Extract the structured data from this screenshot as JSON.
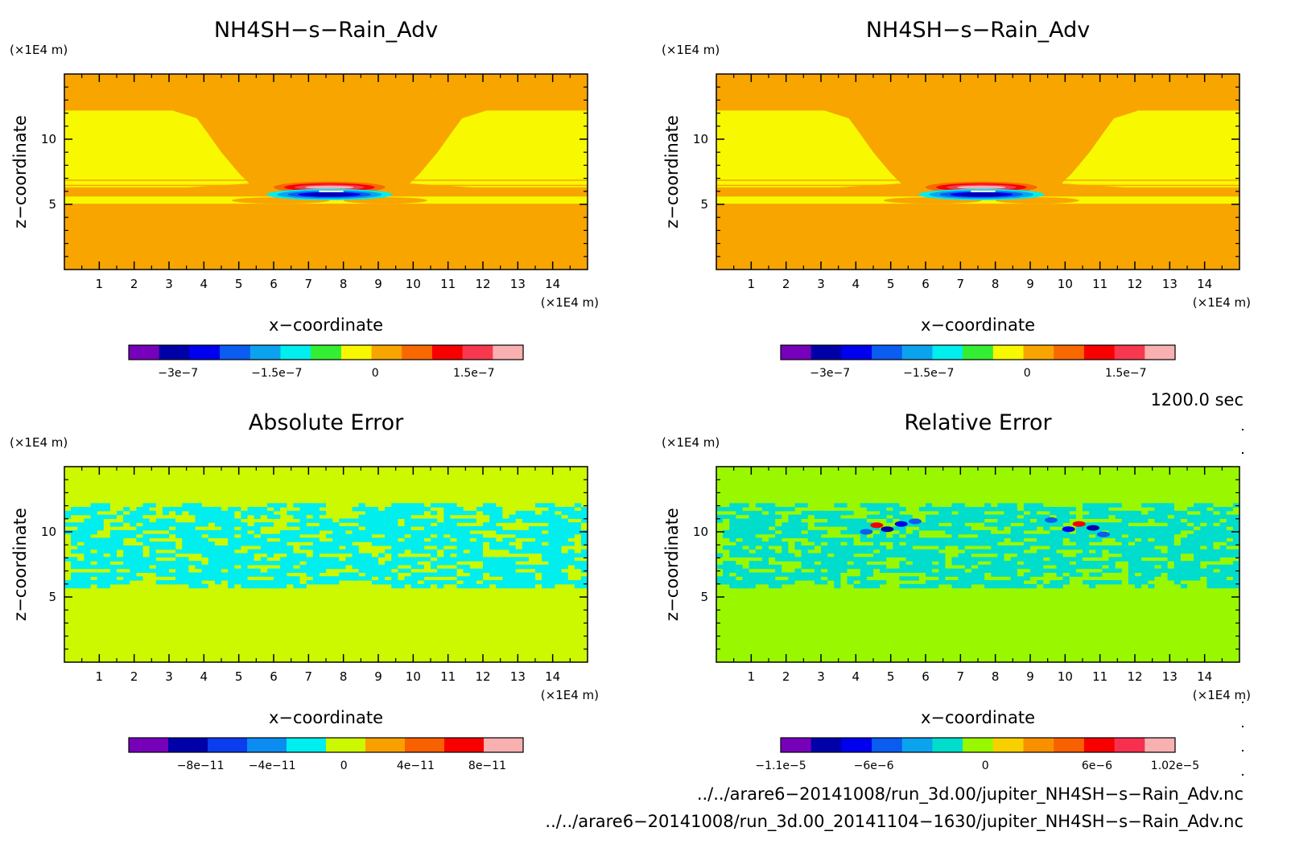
{
  "chart_data": [
    {
      "type": "heatmap",
      "title": "NH4SH−s−Rain_Adv",
      "xlabel": "x−coordinate",
      "ylabel": "z−coordinate",
      "x_unit": "(×1E4 m)",
      "y_unit": "(×1E4 m)",
      "xlim": [
        0,
        15
      ],
      "ylim": [
        0,
        15
      ],
      "x_ticks": [
        1,
        2,
        3,
        4,
        5,
        6,
        7,
        8,
        9,
        10,
        11,
        12,
        13,
        14
      ],
      "y_ticks": [
        5,
        10
      ],
      "field": "cloud_top",
      "colorbar": {
        "range": [
          -3.75e-07,
          2.25e-07
        ],
        "colors": [
          "#7700bb",
          "#0000a8",
          "#0000ee",
          "#0b5cf0",
          "#0ba3ee",
          "#00eeee",
          "#33ee33",
          "#f8f800",
          "#f8a500",
          "#f86800",
          "#f80000",
          "#f8384e",
          "#f8b0b0"
        ],
        "tick_values": [
          -3e-07,
          -1.5e-07,
          0,
          1.5e-07
        ],
        "tick_labels": [
          "−3e−7",
          "−1.5e−7",
          "0",
          "1.5e−7"
        ]
      }
    },
    {
      "type": "heatmap",
      "title": "NH4SH−s−Rain_Adv",
      "xlabel": "x−coordinate",
      "ylabel": "z−coordinate",
      "x_unit": "(×1E4 m)",
      "y_unit": "(×1E4 m)",
      "xlim": [
        0,
        15
      ],
      "ylim": [
        0,
        15
      ],
      "x_ticks": [
        1,
        2,
        3,
        4,
        5,
        6,
        7,
        8,
        9,
        10,
        11,
        12,
        13,
        14
      ],
      "y_ticks": [
        5,
        10
      ],
      "field": "cloud_top",
      "colorbar": {
        "range": [
          -3.75e-07,
          2.25e-07
        ],
        "colors": [
          "#7700bb",
          "#0000a8",
          "#0000ee",
          "#0b5cf0",
          "#0ba3ee",
          "#00eeee",
          "#33ee33",
          "#f8f800",
          "#f8a500",
          "#f86800",
          "#f80000",
          "#f8384e",
          "#f8b0b0"
        ],
        "tick_values": [
          -3e-07,
          -1.5e-07,
          0,
          1.5e-07
        ],
        "tick_labels": [
          "−3e−7",
          "−1.5e−7",
          "0",
          "1.5e−7"
        ]
      }
    },
    {
      "type": "heatmap",
      "title": "Absolute Error",
      "xlabel": "x−coordinate",
      "ylabel": "z−coordinate",
      "x_unit": "(×1E4 m)",
      "y_unit": "(×1E4 m)",
      "xlim": [
        0,
        15
      ],
      "ylim": [
        0,
        15
      ],
      "x_ticks": [
        1,
        2,
        3,
        4,
        5,
        6,
        7,
        8,
        9,
        10,
        11,
        12,
        13,
        14
      ],
      "y_ticks": [
        5,
        10
      ],
      "field": "abs_error",
      "colorbar": {
        "range": [
          -1.2e-10,
          1e-10
        ],
        "colors": [
          "#7700bb",
          "#0000aa",
          "#0b3cee",
          "#0b8cf0",
          "#00eeee",
          "#ccf800",
          "#f8a000",
          "#f86000",
          "#f80000",
          "#f8b0b0"
        ],
        "tick_values": [
          -8e-11,
          -4e-11,
          0,
          4e-11,
          8e-11
        ],
        "tick_labels": [
          "−8e−11",
          "−4e−11",
          "0",
          "4e−11",
          "8e−11"
        ]
      }
    },
    {
      "type": "heatmap",
      "title": "Relative Error",
      "xlabel": "x−coordinate",
      "ylabel": "z−coordinate",
      "x_unit": "(×1E4 m)",
      "y_unit": "(×1E4 m)",
      "xlim": [
        0,
        15
      ],
      "ylim": [
        0,
        15
      ],
      "x_ticks": [
        1,
        2,
        3,
        4,
        5,
        6,
        7,
        8,
        9,
        10,
        11,
        12,
        13,
        14
      ],
      "y_ticks": [
        5,
        10
      ],
      "field": "rel_error",
      "colorbar": {
        "range": [
          -1.1e-05,
          1.02e-05
        ],
        "colors": [
          "#7700bb",
          "#0000aa",
          "#0000ee",
          "#0b5cf0",
          "#0ba3ee",
          "#00ddcc",
          "#99f800",
          "#f8d000",
          "#f89000",
          "#f86000",
          "#f80000",
          "#f83050",
          "#f8b0b0"
        ],
        "tick_values": [
          -1.1e-05,
          -6e-06,
          0,
          6e-06,
          1.02e-05
        ],
        "tick_labels": [
          "−1.1e−5",
          "−6e−6",
          "0",
          "6e−6",
          "1.02e−5"
        ]
      }
    }
  ],
  "info": {
    "time": "1200.0 sec",
    "file1": "../../arare6−20141008/run_3d.00/jupiter_NH4SH−s−Rain_Adv.nc",
    "file2": "../../arare6−20141008/run_3d.00_20141104−1630/jupiter_NH4SH−s−Rain_Adv.nc"
  }
}
